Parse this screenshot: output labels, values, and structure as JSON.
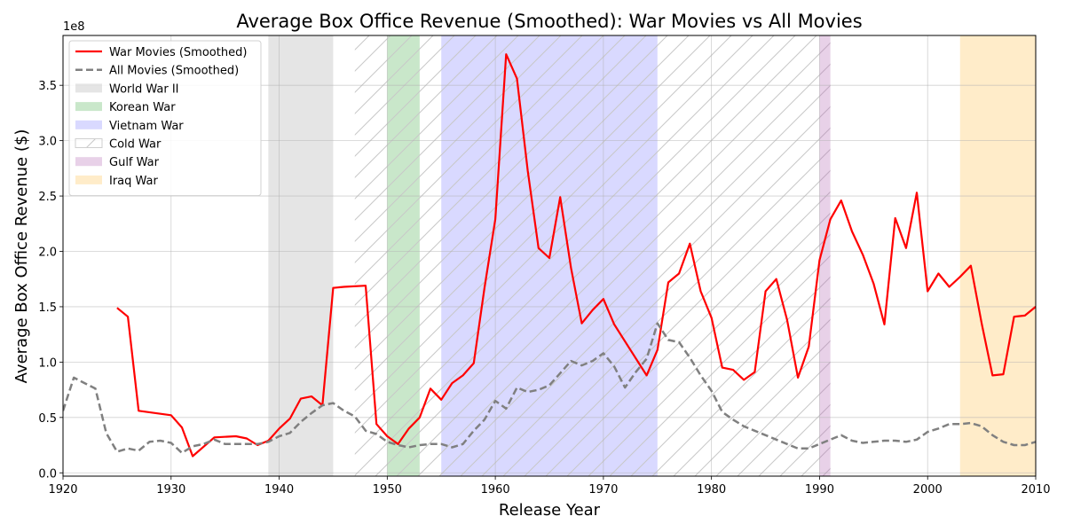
{
  "chart_data": {
    "type": "line",
    "title": "Average Box Office Revenue (Smoothed): War Movies vs All Movies",
    "xlabel": "Release Year",
    "ylabel": "Average Box Office Revenue ($)",
    "y_offset_label": "1e8",
    "xlim": [
      1920,
      2010
    ],
    "ylim": [
      -3000000,
      395000000
    ],
    "x_ticks": [
      1920,
      1930,
      1940,
      1950,
      1960,
      1970,
      1980,
      1990,
      2000,
      2010
    ],
    "y_ticks": [
      0,
      50000000,
      100000000,
      150000000,
      200000000,
      250000000,
      300000000,
      350000000
    ],
    "y_tick_labels": [
      "0.0",
      "0.5",
      "1.0",
      "1.5",
      "2.0",
      "2.5",
      "3.0",
      "3.5"
    ],
    "grid": true,
    "legend_position": "top-left",
    "series": [
      {
        "name": "War Movies (Smoothed)",
        "color": "#ff0000",
        "style": "solid",
        "x": [
          1925,
          1926,
          1927,
          1930,
          1931,
          1932,
          1934,
          1936,
          1937,
          1938,
          1939,
          1940,
          1941,
          1942,
          1943,
          1944,
          1945,
          1946,
          1948,
          1949,
          1950,
          1951,
          1952,
          1953,
          1954,
          1955,
          1956,
          1957,
          1958,
          1959,
          1960,
          1961,
          1962,
          1963,
          1964,
          1965,
          1966,
          1967,
          1968,
          1969,
          1970,
          1971,
          1974,
          1975,
          1976,
          1977,
          1978,
          1979,
          1980,
          1981,
          1982,
          1983,
          1984,
          1985,
          1986,
          1987,
          1988,
          1989,
          1990,
          1991,
          1992,
          1993,
          1994,
          1995,
          1996,
          1997,
          1998,
          1999,
          2000,
          2001,
          2002,
          2003,
          2004,
          2005,
          2006,
          2007,
          2008,
          2009,
          2010
        ],
        "values": [
          149000000,
          141000000,
          56000000,
          52000000,
          41000000,
          15000000,
          32000000,
          33000000,
          31000000,
          25000000,
          29000000,
          40000000,
          49000000,
          67000000,
          69000000,
          61000000,
          167000000,
          168000000,
          169000000,
          44000000,
          33000000,
          26000000,
          40000000,
          50000000,
          76000000,
          66000000,
          81000000,
          88000000,
          99000000,
          167000000,
          229000000,
          378000000,
          356000000,
          273000000,
          203000000,
          194000000,
          249000000,
          185000000,
          135000000,
          147000000,
          157000000,
          134000000,
          88000000,
          111000000,
          172000000,
          180000000,
          207000000,
          164000000,
          140000000,
          95000000,
          93000000,
          84000000,
          91000000,
          164000000,
          175000000,
          138000000,
          86000000,
          114000000,
          192000000,
          229000000,
          246000000,
          218000000,
          197000000,
          171000000,
          134000000,
          230000000,
          203000000,
          253000000,
          164000000,
          180000000,
          168000000,
          177000000,
          187000000,
          135000000,
          88000000,
          89000000,
          141000000,
          142000000,
          150000000
        ]
      },
      {
        "name": "All Movies (Smoothed)",
        "color": "#808080",
        "style": "dashed",
        "x": [
          1920,
          1921,
          1923,
          1924,
          1925,
          1926,
          1927,
          1928,
          1929,
          1930,
          1931,
          1932,
          1933,
          1934,
          1935,
          1936,
          1937,
          1938,
          1939,
          1940,
          1941,
          1942,
          1943,
          1944,
          1945,
          1946,
          1947,
          1948,
          1949,
          1950,
          1951,
          1952,
          1953,
          1954,
          1955,
          1956,
          1957,
          1958,
          1959,
          1960,
          1961,
          1962,
          1963,
          1964,
          1965,
          1966,
          1967,
          1968,
          1969,
          1970,
          1971,
          1972,
          1973,
          1974,
          1975,
          1976,
          1977,
          1978,
          1979,
          1980,
          1981,
          1982,
          1983,
          1984,
          1985,
          1986,
          1987,
          1988,
          1989,
          1990,
          1991,
          1992,
          1993,
          1994,
          1995,
          1996,
          1997,
          1998,
          1999,
          2000,
          2001,
          2002,
          2003,
          2004,
          2005,
          2006,
          2007,
          2008,
          2009,
          2010
        ],
        "values": [
          56000000,
          86000000,
          76000000,
          36000000,
          19000000,
          22000000,
          20000000,
          28000000,
          29000000,
          27000000,
          18000000,
          24000000,
          26000000,
          30000000,
          26000000,
          26000000,
          26000000,
          26000000,
          28000000,
          33000000,
          36000000,
          46000000,
          54000000,
          61000000,
          63000000,
          56000000,
          51000000,
          38000000,
          35000000,
          28000000,
          25000000,
          23000000,
          25000000,
          26000000,
          26000000,
          23000000,
          26000000,
          38000000,
          48000000,
          65000000,
          58000000,
          77000000,
          73000000,
          75000000,
          79000000,
          90000000,
          101000000,
          97000000,
          101000000,
          108000000,
          96000000,
          77000000,
          91000000,
          103000000,
          135000000,
          120000000,
          118000000,
          104000000,
          88000000,
          74000000,
          55000000,
          48000000,
          42000000,
          38000000,
          34000000,
          30000000,
          26000000,
          22000000,
          22000000,
          26000000,
          30000000,
          34000000,
          29000000,
          27000000,
          28000000,
          29000000,
          29000000,
          28000000,
          30000000,
          37000000,
          40000000,
          44000000,
          44000000,
          45000000,
          42000000,
          34000000,
          28000000,
          25000000,
          25000000,
          28000000
        ]
      }
    ],
    "spans": [
      {
        "name": "World War II",
        "start": 1939,
        "end": 1945,
        "color": "#a9a9a9",
        "hatch": false
      },
      {
        "name": "Korean War",
        "start": 1950,
        "end": 1953,
        "color": "#4caf50",
        "hatch": false
      },
      {
        "name": "Vietnam War",
        "start": 1955,
        "end": 1975,
        "color": "#8080ff",
        "hatch": false
      },
      {
        "name": "Cold War",
        "start": 1947,
        "end": 1991,
        "color": "#bfbfbf",
        "hatch": true
      },
      {
        "name": "Gulf War",
        "start": 1990,
        "end": 1991,
        "color": "#b266b2",
        "hatch": false
      },
      {
        "name": "Iraq War",
        "start": 2003,
        "end": 2011,
        "color": "#ffc04d",
        "hatch": false
      }
    ]
  }
}
